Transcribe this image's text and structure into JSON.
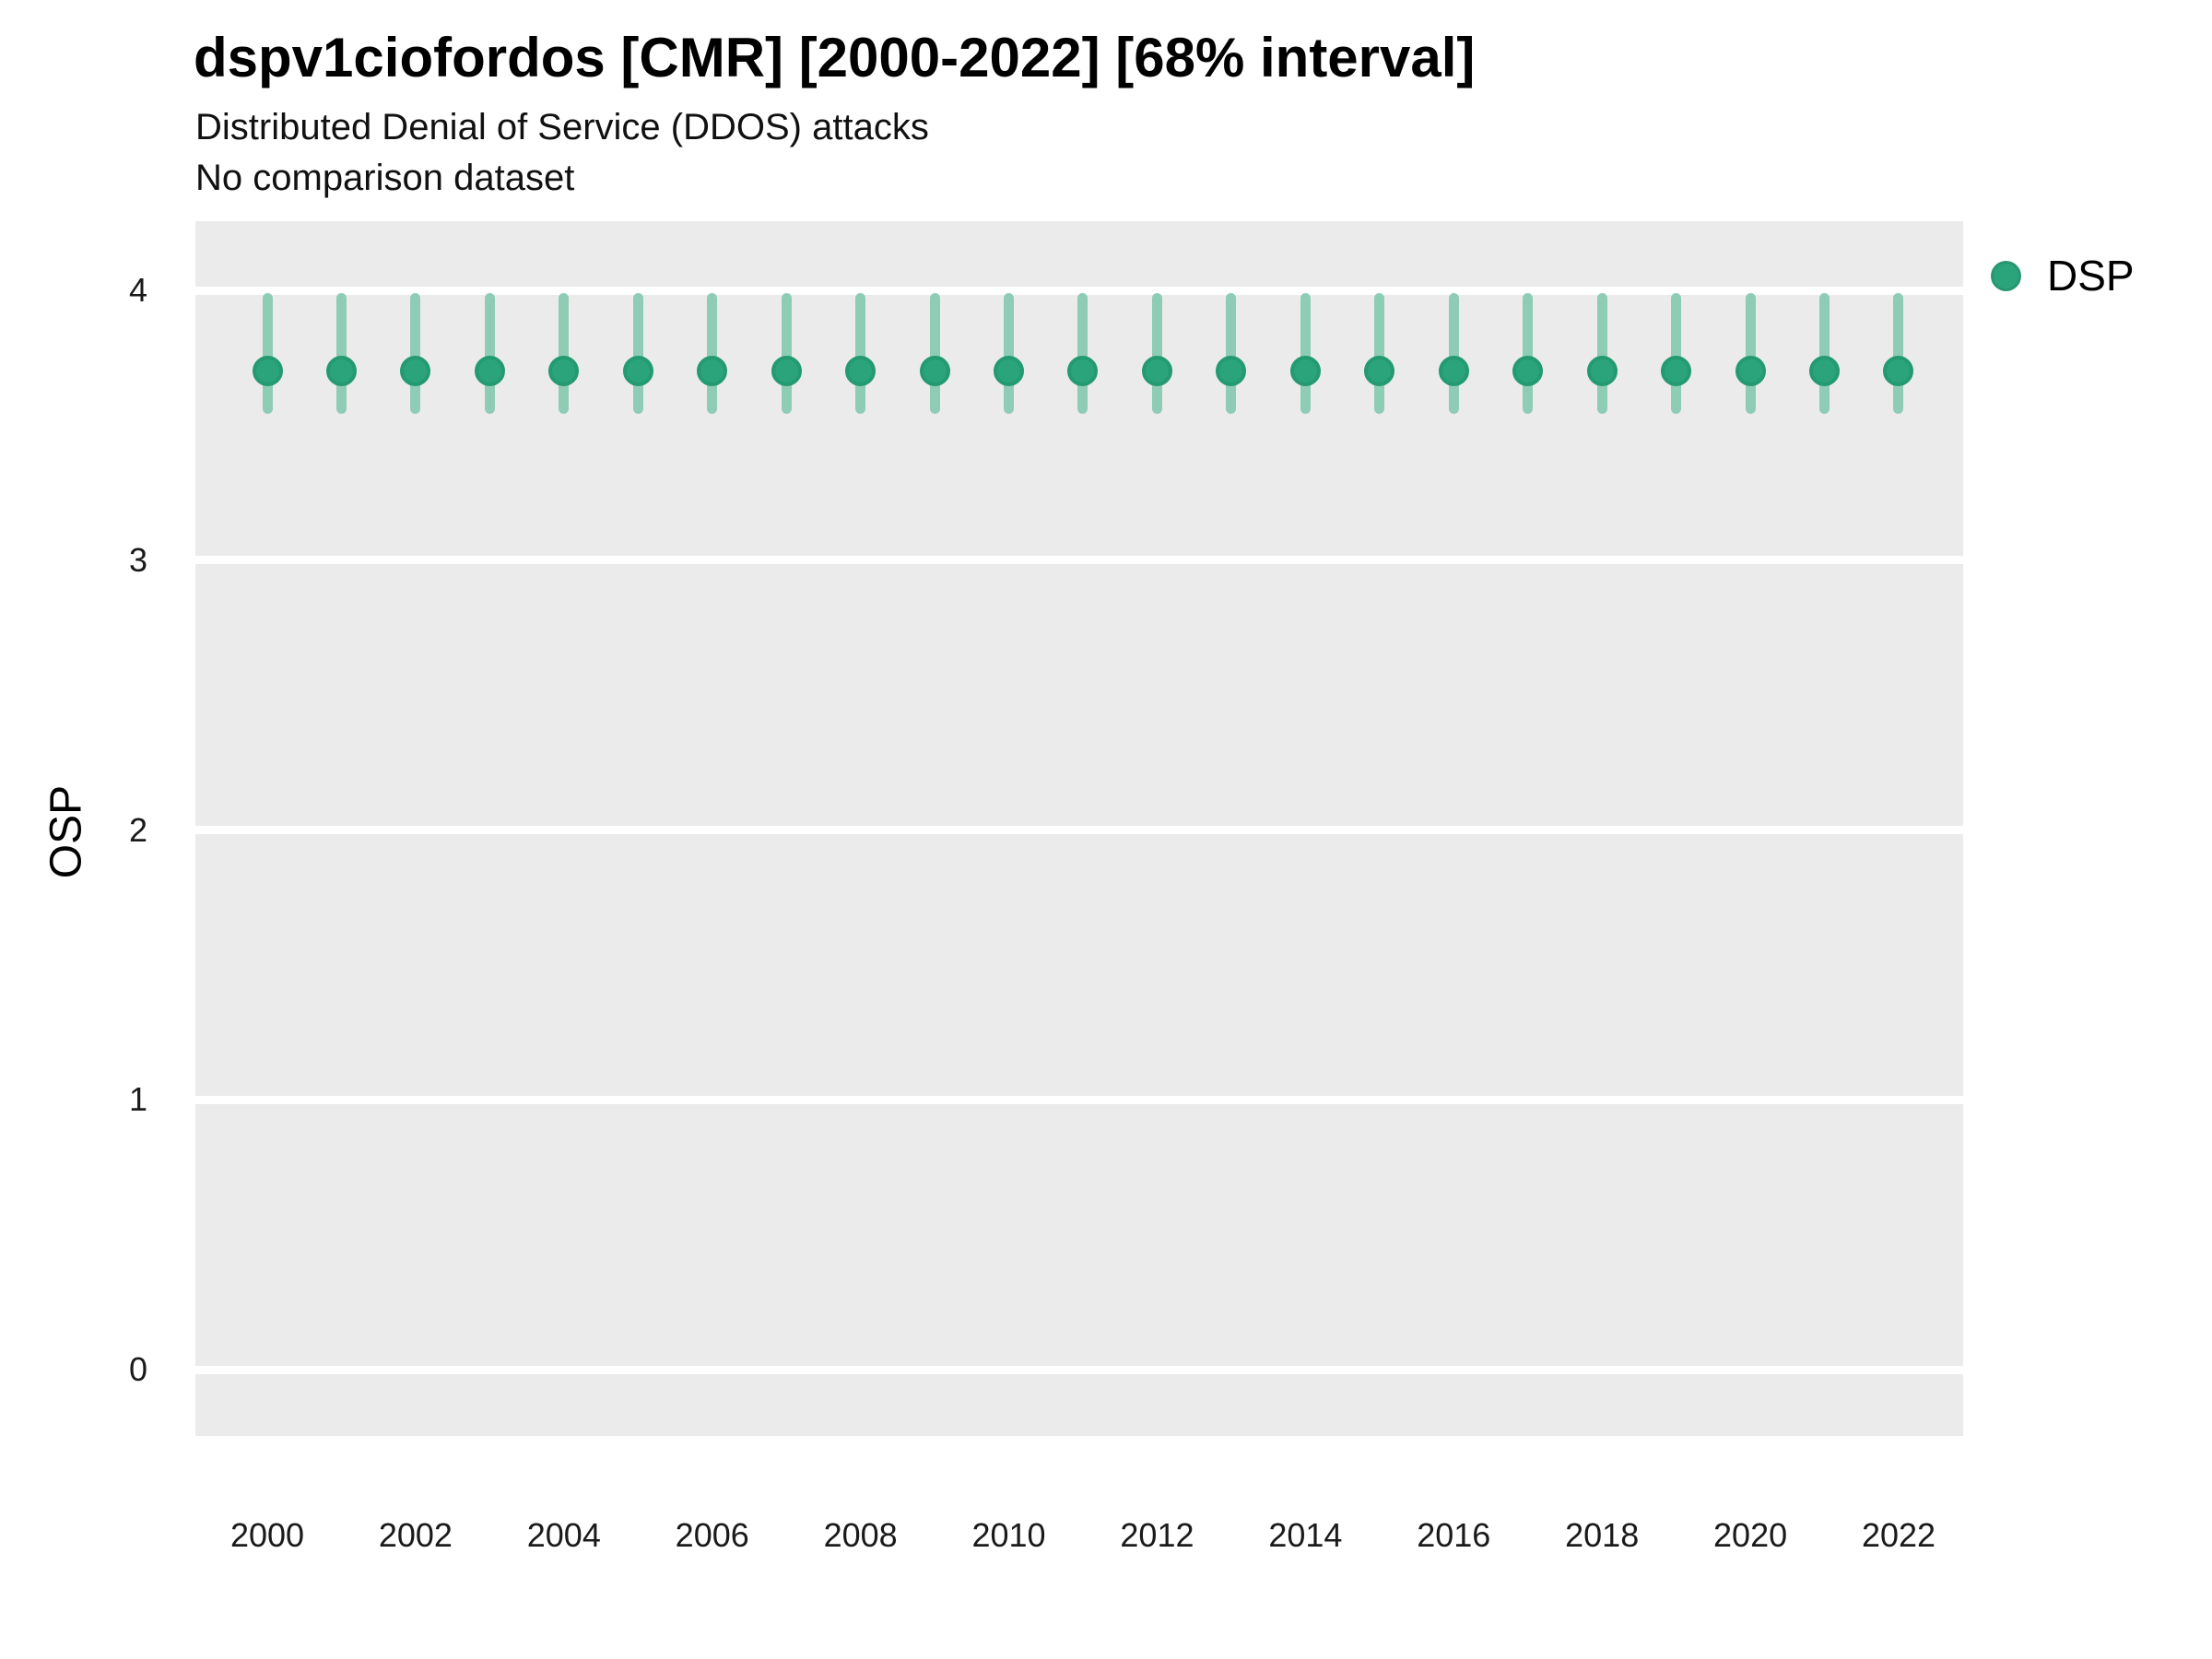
{
  "header": {
    "title": "dspv1ciofordos [CMR] [2000-2022] [68% interval]",
    "subtitle": "Distributed Denial of Service (DDOS) attacks",
    "comparison_note": "No comparison dataset"
  },
  "legend": {
    "items": [
      {
        "label": "DSP",
        "color": "#2ba47c"
      }
    ]
  },
  "colors": {
    "point": "#2ba47c",
    "point_border": "#249a71",
    "interval_bar": "#8fccb6",
    "panel_background": "#ebebeb",
    "gridline": "#ffffff",
    "text": "#1a1a1a"
  },
  "chart_data": {
    "type": "pointrange",
    "title": "dspv1ciofordos [CMR] [2000-2022] [68% interval]",
    "subtitle": "Distributed Denial of Service (DDOS) attacks",
    "note": "No comparison dataset",
    "interval": "68%",
    "xlabel": "",
    "ylabel": "OSP",
    "x": [
      2000,
      2001,
      2002,
      2003,
      2004,
      2005,
      2006,
      2007,
      2008,
      2009,
      2010,
      2011,
      2012,
      2013,
      2014,
      2015,
      2016,
      2017,
      2018,
      2019,
      2020,
      2021,
      2022
    ],
    "series": [
      {
        "name": "DSP",
        "estimates": [
          3.7,
          3.7,
          3.7,
          3.7,
          3.7,
          3.7,
          3.7,
          3.7,
          3.7,
          3.7,
          3.7,
          3.7,
          3.7,
          3.7,
          3.7,
          3.7,
          3.7,
          3.7,
          3.7,
          3.7,
          3.7,
          3.7,
          3.7
        ],
        "lower": [
          3.56,
          3.56,
          3.56,
          3.56,
          3.56,
          3.56,
          3.56,
          3.56,
          3.56,
          3.56,
          3.56,
          3.56,
          3.56,
          3.56,
          3.56,
          3.56,
          3.56,
          3.56,
          3.56,
          3.56,
          3.56,
          3.56,
          3.56
        ],
        "upper": [
          3.97,
          3.97,
          3.97,
          3.97,
          3.97,
          3.97,
          3.97,
          3.97,
          3.97,
          3.97,
          3.97,
          3.97,
          3.97,
          3.97,
          3.97,
          3.97,
          3.97,
          3.97,
          3.97,
          3.97,
          3.97,
          3.97,
          3.97
        ]
      }
    ],
    "x_ticks": [
      2000,
      2002,
      2004,
      2006,
      2008,
      2010,
      2012,
      2014,
      2016,
      2018,
      2020,
      2022
    ],
    "y_ticks": [
      0,
      1,
      2,
      3,
      4
    ],
    "ylim": [
      -0.25,
      4.26
    ],
    "grid": "horizontal-major",
    "legend_position": "right"
  }
}
